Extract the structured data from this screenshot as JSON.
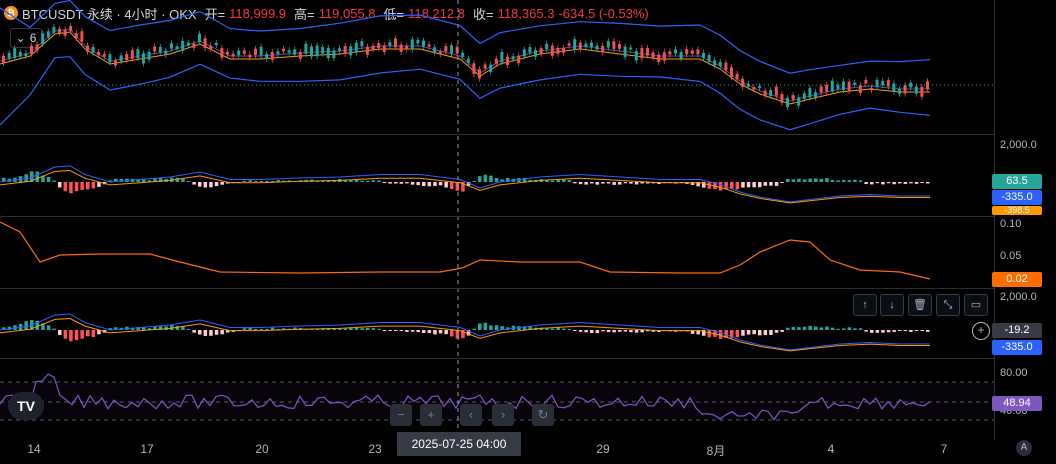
{
  "header": {
    "symbol": "BTCUSDT 永续 · 4小时 · OKX",
    "open_label": "开=",
    "open_value": "118,999.9",
    "high_label": "高=",
    "high_value": "119,055.8",
    "low_label": "低=",
    "low_value": "118,212.8",
    "close_label": "收=",
    "close_value": "118,365.3",
    "change_value": "-634.5 (-0.53%)"
  },
  "indicator_toggle": {
    "count": "6"
  },
  "panes": {
    "macd1": {
      "axis_label": "2,000.0",
      "tags": [
        "63.5",
        "-335.0",
        "-398.5"
      ]
    },
    "volatility": {
      "axis_labels": [
        "0.10",
        "0.05"
      ],
      "tag": "0.02"
    },
    "macd2": {
      "axis_label": "2,000.0",
      "tags": [
        "-19.2",
        "-335.0"
      ]
    },
    "rsi": {
      "axis_labels": [
        "80.00",
        "40.00"
      ],
      "tag": "48.94"
    }
  },
  "x_axis": {
    "labels": [
      "14",
      "17",
      "20",
      "23",
      "29",
      "8月",
      "4",
      "7"
    ],
    "cursor_label": "2025-07-25  04:00"
  },
  "colors": {
    "up": "#26a69a",
    "down": "#ef5350",
    "bb": "#2962ff",
    "ma": "#ff9800",
    "rsi": "#7e57c2"
  },
  "icons": {
    "pane_toolbar": [
      "arrow-up-icon",
      "arrow-down-icon",
      "trash-icon",
      "collapse-icon",
      "maximize-icon"
    ],
    "navigation": [
      "zoom-out-icon",
      "zoom-in-icon",
      "scroll-left-icon",
      "scroll-right-icon",
      "reset-icon"
    ]
  }
}
